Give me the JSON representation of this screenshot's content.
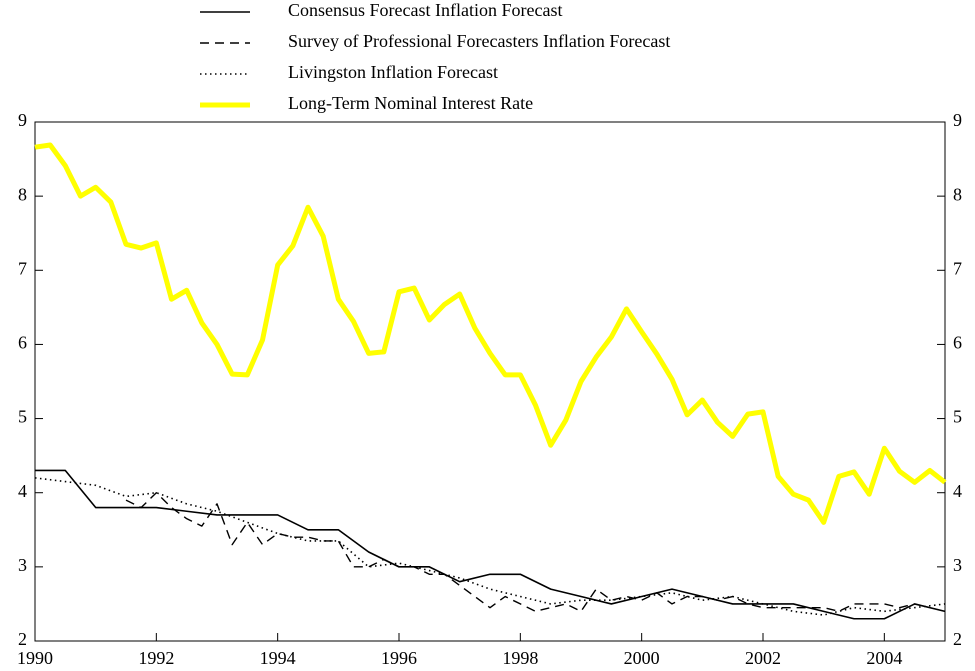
{
  "chart_data": {
    "type": "line",
    "legend": "top",
    "grid": false,
    "xlim": [
      1990,
      2005
    ],
    "xticks": [
      1990,
      1992,
      1994,
      1996,
      1998,
      2000,
      2002,
      2004
    ],
    "ylim": [
      2,
      9
    ],
    "yticks": [
      2,
      3,
      4,
      5,
      6,
      7,
      8,
      9
    ],
    "y2lim": [
      2,
      9
    ],
    "y2ticks": [
      2,
      3,
      4,
      5,
      6,
      7,
      8,
      9
    ],
    "series": [
      {
        "name": "Consensus Forecast Inflation Forecast",
        "color": "#000000",
        "dash": "solid",
        "x": [
          1990,
          1990.5,
          1991,
          1991.5,
          1992,
          1992.5,
          1993,
          1993.5,
          1994,
          1994.5,
          1995,
          1995.5,
          1996,
          1996.5,
          1997,
          1997.5,
          1998,
          1998.5,
          1999,
          1999.5,
          2000,
          2000.5,
          2001,
          2001.5,
          2002,
          2002.5,
          2003,
          2003.5,
          2004,
          2004.5,
          2005
        ],
        "values": [
          4.3,
          4.3,
          3.8,
          3.8,
          3.8,
          3.75,
          3.7,
          3.7,
          3.7,
          3.5,
          3.5,
          3.2,
          3.0,
          3.0,
          2.8,
          2.9,
          2.9,
          2.7,
          2.6,
          2.5,
          2.6,
          2.7,
          2.6,
          2.5,
          2.5,
          2.5,
          2.4,
          2.3,
          2.3,
          2.5,
          2.4
        ]
      },
      {
        "name": "Survey of Professional Forecasters Inflation Forecast",
        "color": "#000000",
        "dash": "dashed",
        "x": [
          1991.5,
          1991.75,
          1992,
          1992.25,
          1992.5,
          1992.75,
          1993,
          1993.25,
          1993.5,
          1993.75,
          1994,
          1994.25,
          1994.5,
          1994.75,
          1995,
          1995.25,
          1995.5,
          1995.75,
          1996,
          1996.25,
          1996.5,
          1996.75,
          1997,
          1997.25,
          1997.5,
          1997.75,
          1998,
          1998.25,
          1998.5,
          1998.75,
          1999,
          1999.25,
          1999.5,
          1999.75,
          2000,
          2000.25,
          2000.5,
          2000.75,
          2001,
          2001.25,
          2001.5,
          2001.75,
          2002,
          2002.25,
          2002.5,
          2002.75,
          2003,
          2003.25,
          2003.5,
          2003.75,
          2004,
          2004.25,
          2004.5
        ],
        "values": [
          3.9,
          3.8,
          4.0,
          3.8,
          3.65,
          3.55,
          3.85,
          3.3,
          3.6,
          3.3,
          3.45,
          3.4,
          3.4,
          3.35,
          3.35,
          3.0,
          3.0,
          3.1,
          3.0,
          3.0,
          2.9,
          2.9,
          2.75,
          2.6,
          2.45,
          2.6,
          2.5,
          2.4,
          2.45,
          2.5,
          2.4,
          2.7,
          2.55,
          2.6,
          2.55,
          2.65,
          2.5,
          2.6,
          2.6,
          2.55,
          2.6,
          2.5,
          2.45,
          2.45,
          2.45,
          2.45,
          2.45,
          2.4,
          2.5,
          2.5,
          2.5,
          2.45,
          2.5
        ]
      },
      {
        "name": "Livingston Inflation Forecast",
        "color": "#000000",
        "dash": "dotted",
        "x": [
          1990,
          1990.5,
          1991,
          1991.5,
          1992,
          1992.5,
          1993,
          1993.5,
          1994,
          1994.5,
          1995,
          1995.5,
          1996,
          1996.5,
          1997,
          1997.5,
          1998,
          1998.5,
          1999,
          1999.5,
          2000,
          2000.5,
          2001,
          2001.5,
          2002,
          2002.5,
          2003,
          2003.5,
          2004,
          2004.5,
          2005
        ],
        "values": [
          4.2,
          4.15,
          4.1,
          3.95,
          4.0,
          3.85,
          3.75,
          3.6,
          3.45,
          3.35,
          3.35,
          3.0,
          3.05,
          2.95,
          2.85,
          2.7,
          2.6,
          2.5,
          2.55,
          2.55,
          2.6,
          2.65,
          2.55,
          2.6,
          2.5,
          2.4,
          2.35,
          2.45,
          2.4,
          2.45,
          2.5
        ]
      },
      {
        "name": "Long-Term Nominal Interest Rate",
        "color": "#ffff00",
        "dash": "thick",
        "x": [
          1990,
          1990.25,
          1990.5,
          1990.75,
          1991,
          1991.25,
          1991.5,
          1991.75,
          1992,
          1992.25,
          1992.5,
          1992.75,
          1993,
          1993.25,
          1993.5,
          1993.75,
          1994,
          1994.25,
          1994.5,
          1994.75,
          1995,
          1995.25,
          1995.5,
          1995.75,
          1996,
          1996.25,
          1996.5,
          1996.75,
          1997,
          1997.25,
          1997.5,
          1997.75,
          1998,
          1998.25,
          1998.5,
          1998.75,
          1999,
          1999.25,
          1999.5,
          1999.75,
          2000,
          2000.25,
          2000.5,
          2000.75,
          2001,
          2001.25,
          2001.5,
          2001.75,
          2002,
          2002.25,
          2002.5,
          2002.75,
          2003,
          2003.25,
          2003.5,
          2003.75,
          2004,
          2004.25,
          2004.5,
          2004.75,
          2005
        ],
        "values": [
          8.66,
          8.69,
          8.41,
          8.0,
          8.12,
          7.92,
          7.35,
          7.3,
          7.37,
          6.61,
          6.73,
          6.29,
          6.0,
          5.6,
          5.59,
          6.06,
          7.07,
          7.33,
          7.85,
          7.46,
          6.61,
          6.31,
          5.88,
          5.9,
          6.71,
          6.76,
          6.33,
          6.54,
          6.68,
          6.22,
          5.88,
          5.59,
          5.59,
          5.18,
          4.64,
          4.98,
          5.5,
          5.83,
          6.1,
          6.48,
          6.17,
          5.87,
          5.53,
          5.05,
          5.25,
          4.95,
          4.76,
          5.06,
          5.09,
          4.22,
          3.98,
          3.9,
          3.6,
          4.22,
          4.28,
          3.98,
          4.6,
          4.29,
          4.14,
          4.3,
          4.14
        ]
      }
    ]
  }
}
